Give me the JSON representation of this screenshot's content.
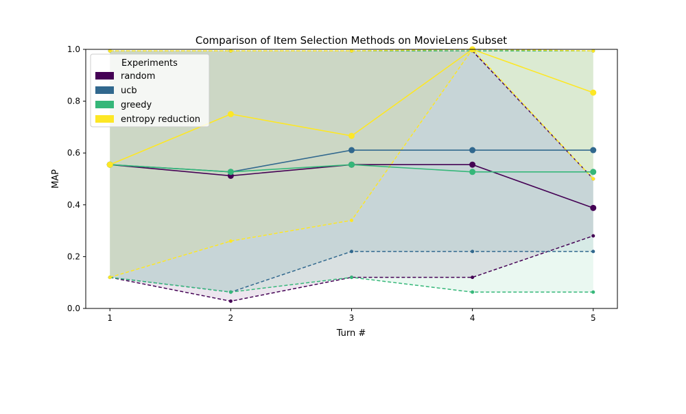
{
  "chart_data": {
    "type": "line",
    "title": "Comparison of Item Selection Methods on MovieLens Subset",
    "xlabel": "Turn #",
    "ylabel": "MAP",
    "x": [
      1,
      2,
      3,
      4,
      5
    ],
    "xlim": [
      0.8,
      5.2
    ],
    "ylim": [
      0,
      1
    ],
    "x_ticks": [
      "1",
      "2",
      "3",
      "4",
      "5"
    ],
    "y_ticks": [
      "0.0",
      "0.2",
      "0.4",
      "0.6",
      "0.8",
      "1.0"
    ],
    "grid": false,
    "legend": {
      "title": "Experiments",
      "placement": "top-left"
    },
    "series": [
      {
        "name": "random",
        "color": "#440154",
        "mean": [
          0.555,
          0.512,
          0.555,
          0.555,
          0.388
        ],
        "lower": [
          0.12,
          0.028,
          0.12,
          0.12,
          0.28
        ],
        "upper": [
          0.994,
          0.994,
          0.994,
          0.994,
          0.5
        ]
      },
      {
        "name": "ucb",
        "color": "#31688e",
        "mean": [
          0.555,
          0.527,
          0.611,
          0.611,
          0.611
        ],
        "lower": [
          0.12,
          0.063,
          0.22,
          0.22,
          0.22
        ],
        "upper": [
          0.994,
          0.994,
          0.994,
          0.994,
          0.994
        ]
      },
      {
        "name": "greedy",
        "color": "#35b779",
        "mean": [
          0.555,
          0.527,
          0.555,
          0.527,
          0.527
        ],
        "lower": [
          0.12,
          0.063,
          0.12,
          0.063,
          0.063
        ],
        "upper": [
          0.994,
          0.994,
          0.994,
          0.994,
          0.994
        ]
      },
      {
        "name": "entropy reduction",
        "color": "#fde725",
        "mean": [
          0.555,
          0.75,
          0.666,
          1.0,
          0.833
        ],
        "lower": [
          0.12,
          0.26,
          0.34,
          1.0,
          0.5
        ],
        "upper": [
          0.994,
          0.994,
          0.994,
          1.0,
          0.994
        ]
      }
    ]
  }
}
